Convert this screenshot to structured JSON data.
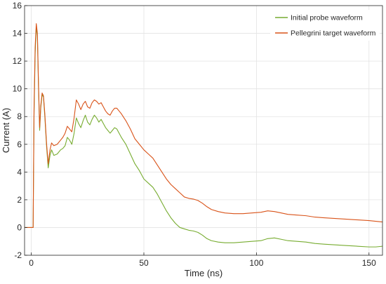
{
  "chart_data": {
    "type": "line",
    "xlabel": "Time (ns)",
    "ylabel": "Current (A)",
    "xlim": [
      -3,
      156
    ],
    "ylim": [
      -2,
      16
    ],
    "x_ticks": [
      "0",
      "50",
      "100",
      "150"
    ],
    "x_tick_values": [
      0,
      50,
      100,
      150
    ],
    "y_ticks": [
      "-2",
      "0",
      "2",
      "4",
      "6",
      "8",
      "10",
      "12",
      "14",
      "16"
    ],
    "y_tick_values": [
      -2,
      0,
      2,
      4,
      6,
      8,
      10,
      12,
      14,
      16
    ],
    "grid": true,
    "legend_position": "top-right",
    "series": [
      {
        "name": "Initial probe waveform",
        "color": "#77AC30",
        "points": [
          [
            -3,
            0.0
          ],
          [
            0,
            0.0
          ],
          [
            0.8,
            0.0
          ],
          [
            1.2,
            8.0
          ],
          [
            1.7,
            12.5
          ],
          [
            2.2,
            14.5
          ],
          [
            2.7,
            13.8
          ],
          [
            3.2,
            10.0
          ],
          [
            3.7,
            7.0
          ],
          [
            4.2,
            8.6
          ],
          [
            4.8,
            9.6
          ],
          [
            5.4,
            9.4
          ],
          [
            6.0,
            8.0
          ],
          [
            6.8,
            5.8
          ],
          [
            7.5,
            4.3
          ],
          [
            8.3,
            5.2
          ],
          [
            9.0,
            5.6
          ],
          [
            10.0,
            5.2
          ],
          [
            11.5,
            5.3
          ],
          [
            13.0,
            5.6
          ],
          [
            14.0,
            5.7
          ],
          [
            15.0,
            5.9
          ],
          [
            16.0,
            6.5
          ],
          [
            17.0,
            6.3
          ],
          [
            18.0,
            6.0
          ],
          [
            19.0,
            6.8
          ],
          [
            20.0,
            7.9
          ],
          [
            21.0,
            7.5
          ],
          [
            22.0,
            7.2
          ],
          [
            23.0,
            7.7
          ],
          [
            24.0,
            8.1
          ],
          [
            25.0,
            7.6
          ],
          [
            26.0,
            7.4
          ],
          [
            27.0,
            7.8
          ],
          [
            28.0,
            8.1
          ],
          [
            29.0,
            7.9
          ],
          [
            30.0,
            7.6
          ],
          [
            31.0,
            7.8
          ],
          [
            32.0,
            7.5
          ],
          [
            33.0,
            7.2
          ],
          [
            34.0,
            7.0
          ],
          [
            35.0,
            6.8
          ],
          [
            36.0,
            7.0
          ],
          [
            37.0,
            7.2
          ],
          [
            38.0,
            7.1
          ],
          [
            39.0,
            6.8
          ],
          [
            40.0,
            6.5
          ],
          [
            42.0,
            6.0
          ],
          [
            44.0,
            5.3
          ],
          [
            46.0,
            4.6
          ],
          [
            48.0,
            4.1
          ],
          [
            50.0,
            3.5
          ],
          [
            52.0,
            3.2
          ],
          [
            54.0,
            2.9
          ],
          [
            56.0,
            2.4
          ],
          [
            58.0,
            1.8
          ],
          [
            60.0,
            1.2
          ],
          [
            62.0,
            0.7
          ],
          [
            64.0,
            0.3
          ],
          [
            66.0,
            0.0
          ],
          [
            68.0,
            -0.1
          ],
          [
            70.0,
            -0.2
          ],
          [
            72.0,
            -0.25
          ],
          [
            74.0,
            -0.35
          ],
          [
            76.0,
            -0.55
          ],
          [
            78.0,
            -0.8
          ],
          [
            80.0,
            -0.95
          ],
          [
            83.0,
            -1.05
          ],
          [
            86.0,
            -1.1
          ],
          [
            90.0,
            -1.1
          ],
          [
            94.0,
            -1.05
          ],
          [
            98.0,
            -1.0
          ],
          [
            102.0,
            -0.95
          ],
          [
            105.0,
            -0.8
          ],
          [
            108.0,
            -0.75
          ],
          [
            111.0,
            -0.85
          ],
          [
            114.0,
            -0.95
          ],
          [
            118.0,
            -1.0
          ],
          [
            122.0,
            -1.05
          ],
          [
            126.0,
            -1.15
          ],
          [
            130.0,
            -1.2
          ],
          [
            135.0,
            -1.25
          ],
          [
            140.0,
            -1.3
          ],
          [
            145.0,
            -1.35
          ],
          [
            150.0,
            -1.4
          ],
          [
            153.0,
            -1.4
          ],
          [
            156.0,
            -1.35
          ]
        ]
      },
      {
        "name": "Pellegrini target waveform",
        "color": "#D95319",
        "points": [
          [
            -3,
            0.0
          ],
          [
            0,
            0.0
          ],
          [
            0.8,
            0.0
          ],
          [
            1.2,
            8.5
          ],
          [
            1.7,
            13.0
          ],
          [
            2.2,
            14.7
          ],
          [
            2.7,
            14.0
          ],
          [
            3.2,
            10.3
          ],
          [
            3.7,
            7.2
          ],
          [
            4.2,
            8.8
          ],
          [
            4.8,
            9.7
          ],
          [
            5.4,
            9.5
          ],
          [
            6.0,
            8.2
          ],
          [
            6.8,
            6.0
          ],
          [
            7.5,
            4.6
          ],
          [
            8.3,
            5.6
          ],
          [
            9.0,
            6.1
          ],
          [
            10.0,
            5.9
          ],
          [
            11.5,
            6.0
          ],
          [
            13.0,
            6.3
          ],
          [
            14.0,
            6.5
          ],
          [
            15.0,
            6.8
          ],
          [
            16.0,
            7.3
          ],
          [
            17.0,
            7.1
          ],
          [
            18.0,
            6.9
          ],
          [
            19.0,
            7.9
          ],
          [
            20.0,
            9.2
          ],
          [
            21.0,
            8.9
          ],
          [
            22.0,
            8.5
          ],
          [
            23.0,
            8.9
          ],
          [
            24.0,
            9.1
          ],
          [
            25.0,
            8.7
          ],
          [
            26.0,
            8.6
          ],
          [
            27.0,
            9.0
          ],
          [
            28.0,
            9.2
          ],
          [
            29.0,
            9.1
          ],
          [
            30.0,
            8.9
          ],
          [
            31.0,
            9.0
          ],
          [
            32.0,
            8.7
          ],
          [
            33.0,
            8.4
          ],
          [
            34.0,
            8.2
          ],
          [
            35.0,
            8.1
          ],
          [
            36.0,
            8.4
          ],
          [
            37.0,
            8.6
          ],
          [
            38.0,
            8.6
          ],
          [
            39.0,
            8.4
          ],
          [
            40.0,
            8.2
          ],
          [
            42.0,
            7.7
          ],
          [
            44.0,
            7.1
          ],
          [
            46.0,
            6.4
          ],
          [
            48.0,
            6.0
          ],
          [
            50.0,
            5.6
          ],
          [
            52.0,
            5.3
          ],
          [
            54.0,
            5.0
          ],
          [
            56.0,
            4.5
          ],
          [
            58.0,
            4.0
          ],
          [
            60.0,
            3.5
          ],
          [
            62.0,
            3.1
          ],
          [
            64.0,
            2.8
          ],
          [
            66.0,
            2.5
          ],
          [
            68.0,
            2.2
          ],
          [
            70.0,
            2.1
          ],
          [
            72.0,
            2.05
          ],
          [
            74.0,
            1.95
          ],
          [
            76.0,
            1.75
          ],
          [
            78.0,
            1.5
          ],
          [
            80.0,
            1.3
          ],
          [
            83.0,
            1.15
          ],
          [
            86.0,
            1.05
          ],
          [
            90.0,
            1.0
          ],
          [
            94.0,
            1.0
          ],
          [
            98.0,
            1.05
          ],
          [
            102.0,
            1.1
          ],
          [
            105.0,
            1.2
          ],
          [
            108.0,
            1.15
          ],
          [
            111.0,
            1.05
          ],
          [
            114.0,
            0.95
          ],
          [
            118.0,
            0.9
          ],
          [
            122.0,
            0.85
          ],
          [
            126.0,
            0.75
          ],
          [
            130.0,
            0.7
          ],
          [
            135.0,
            0.65
          ],
          [
            140.0,
            0.6
          ],
          [
            145.0,
            0.55
          ],
          [
            150.0,
            0.5
          ],
          [
            153.0,
            0.45
          ],
          [
            156.0,
            0.4
          ]
        ]
      }
    ]
  }
}
